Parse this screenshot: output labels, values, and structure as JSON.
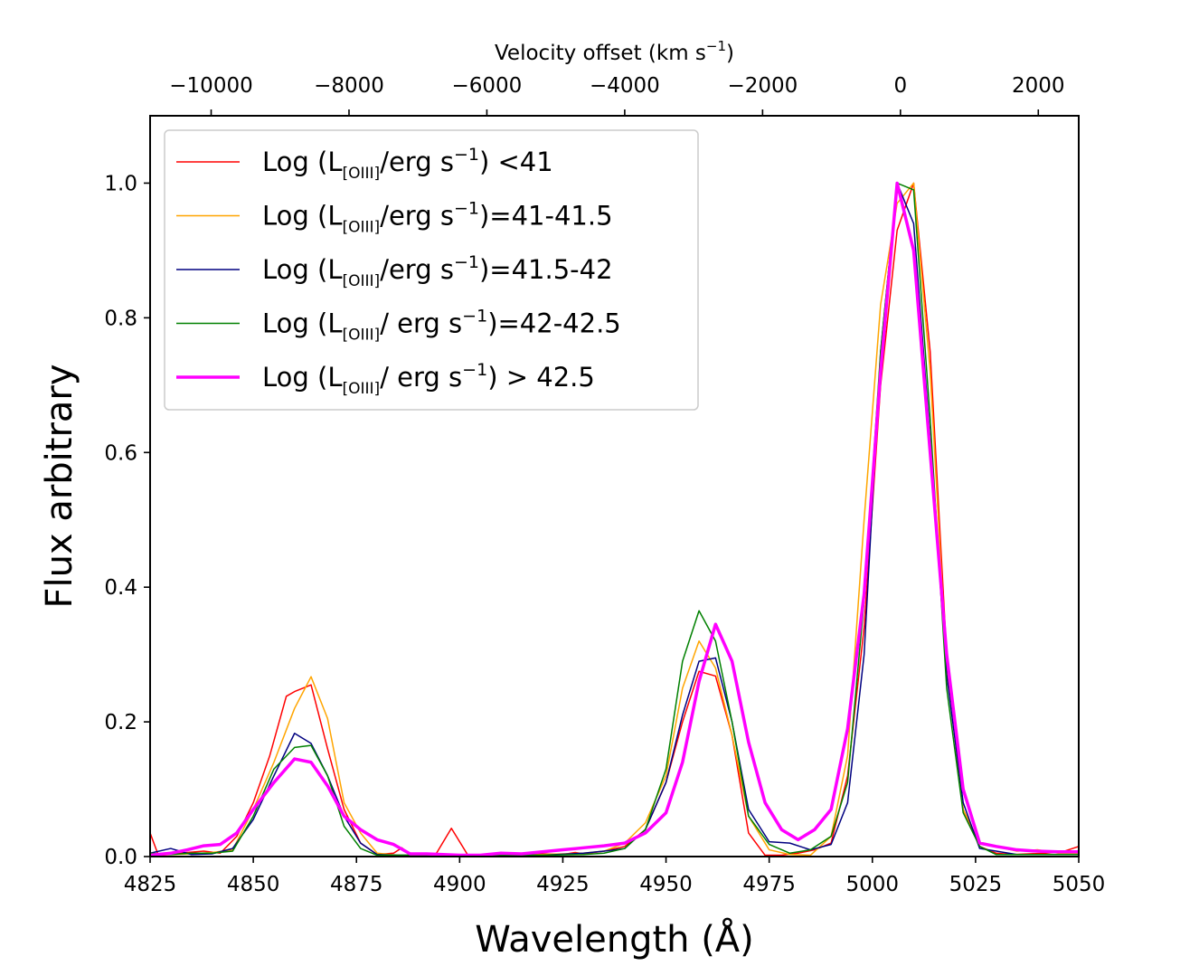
{
  "chart_data": {
    "type": "line",
    "xlabel": "Wavelength (Å)",
    "ylabel": "Flux arbitrary",
    "top_axis_label": "Velocity offset (km s",
    "top_axis_label_sup": "−1",
    "top_axis_label_end": ")",
    "xlim": [
      4825,
      5050
    ],
    "ylim": [
      0,
      1.1
    ],
    "grid": false,
    "legend_position": "upper-left",
    "x_ticks": [
      4825,
      4850,
      4875,
      4900,
      4925,
      4950,
      4975,
      5000,
      5025,
      5050
    ],
    "x_tick_labels": [
      "4825",
      "4850",
      "4875",
      "4900",
      "4925",
      "4950",
      "4975",
      "5000",
      "5025",
      "5050"
    ],
    "y_ticks": [
      0.0,
      0.2,
      0.4,
      0.6,
      0.8,
      1.0
    ],
    "y_tick_labels": [
      "0.0",
      "0.2",
      "0.4",
      "0.6",
      "0.8",
      "1.0"
    ],
    "velocity_ticks": [
      -10000,
      -8000,
      -6000,
      -4000,
      -2000,
      0,
      2000
    ],
    "velocity_tick_labels": [
      "−10000",
      "−8000",
      "−6000",
      "−4000",
      "−2000",
      "0",
      "2000"
    ],
    "velocity_reference_wavelength": 5006.8,
    "series": [
      {
        "name": "Log (L[OIII]/erg s−1) <41",
        "legend_prefix": "Log (L",
        "legend_sub": "[OIII]",
        "legend_mid": "/erg s",
        "legend_sup": "−1",
        "legend_suffix": ") <41",
        "color": "#ff0000",
        "linewidth": 1.5,
        "x": [
          4825,
          4827,
          4830,
          4834,
          4838,
          4842,
          4846,
          4850,
          4854,
          4858,
          4860,
          4864,
          4868,
          4872,
          4876,
          4880,
          4884,
          4886,
          4888,
          4892,
          4894,
          4898,
          4902,
          4906,
          4910,
          4915,
          4920,
          4925,
          4928,
          4930,
          4935,
          4940,
          4945,
          4950,
          4954,
          4958,
          4962,
          4966,
          4970,
          4974,
          4978,
          4982,
          4986,
          4990,
          4994,
          4998,
          5002,
          5006,
          5010,
          5014,
          5018,
          5022,
          5026,
          5030,
          5034,
          5038,
          5042,
          5046,
          5050
        ],
        "y": [
          0.035,
          0.002,
          0.003,
          0.006,
          0.008,
          0.005,
          0.03,
          0.08,
          0.15,
          0.238,
          0.245,
          0.255,
          0.16,
          0.07,
          0.02,
          0.003,
          0.005,
          0.013,
          0.003,
          0.002,
          0.001,
          0.042,
          0.002,
          0.003,
          0.005,
          0.005,
          0.004,
          0.003,
          0.006,
          0.004,
          0.008,
          0.015,
          0.04,
          0.11,
          0.2,
          0.275,
          0.268,
          0.18,
          0.035,
          0.002,
          0.002,
          0.005,
          0.01,
          0.02,
          0.12,
          0.34,
          0.7,
          0.93,
          1.0,
          0.75,
          0.3,
          0.07,
          0.015,
          0.005,
          0.003,
          0.004,
          0.005,
          0.007,
          0.015
        ]
      },
      {
        "name": "Log (L[OIII]/erg s−1)=41-41.5",
        "legend_prefix": "Log (L",
        "legend_sub": "[OIII]",
        "legend_mid": "/erg s",
        "legend_sup": "−1",
        "legend_suffix": ")=41-41.5",
        "color": "#ffa500",
        "linewidth": 1.5,
        "x": [
          4825,
          4830,
          4835,
          4840,
          4845,
          4850,
          4855,
          4860,
          4864,
          4868,
          4872,
          4876,
          4880,
          4885,
          4890,
          4895,
          4900,
          4910,
          4920,
          4930,
          4935,
          4940,
          4945,
          4950,
          4954,
          4958,
          4962,
          4966,
          4970,
          4975,
          4980,
          4985,
          4990,
          4994,
          4998,
          5002,
          5006,
          5010,
          5014,
          5018,
          5022,
          5026,
          5030,
          5035,
          5040,
          5045,
          5050
        ],
        "y": [
          0.003,
          0.003,
          0.004,
          0.006,
          0.01,
          0.07,
          0.14,
          0.22,
          0.267,
          0.205,
          0.08,
          0.035,
          0.005,
          0.002,
          0.002,
          0.002,
          0.002,
          0.002,
          0.003,
          0.005,
          0.008,
          0.02,
          0.05,
          0.12,
          0.25,
          0.32,
          0.28,
          0.18,
          0.06,
          0.01,
          0.003,
          0.002,
          0.03,
          0.15,
          0.5,
          0.82,
          0.97,
          1.0,
          0.72,
          0.28,
          0.07,
          0.02,
          0.015,
          0.008,
          0.01,
          0.005,
          0.005
        ]
      },
      {
        "name": "Log (L[OIII]/erg s−1)=41.5-42",
        "legend_prefix": "Log (L",
        "legend_sub": "[OIII]",
        "legend_mid": "/erg s",
        "legend_sup": "−1",
        "legend_suffix": ")=41.5-42",
        "color": "#000080",
        "linewidth": 1.5,
        "x": [
          4825,
          4830,
          4835,
          4840,
          4845,
          4850,
          4855,
          4860,
          4864,
          4868,
          4872,
          4876,
          4880,
          4885,
          4890,
          4895,
          4900,
          4910,
          4920,
          4930,
          4935,
          4940,
          4945,
          4950,
          4954,
          4958,
          4962,
          4966,
          4970,
          4975,
          4980,
          4985,
          4990,
          4994,
          4998,
          5002,
          5006,
          5010,
          5014,
          5018,
          5022,
          5026,
          5030,
          5035,
          5040,
          5045,
          5050
        ],
        "y": [
          0.005,
          0.012,
          0.003,
          0.004,
          0.012,
          0.055,
          0.12,
          0.183,
          0.168,
          0.12,
          0.06,
          0.02,
          0.003,
          0.002,
          0.002,
          0.002,
          0.002,
          0.002,
          0.002,
          0.005,
          0.008,
          0.012,
          0.04,
          0.11,
          0.21,
          0.29,
          0.295,
          0.2,
          0.07,
          0.022,
          0.02,
          0.01,
          0.018,
          0.08,
          0.3,
          0.75,
          1.0,
          0.94,
          0.62,
          0.27,
          0.08,
          0.012,
          0.008,
          0.003,
          0.003,
          0.003,
          0.003
        ]
      },
      {
        "name": "Log (L[OIII]/ erg s−1)=42-42.5",
        "legend_prefix": "Log (L",
        "legend_sub": "[OIII]",
        "legend_mid": "/ erg s",
        "legend_sup": "−1",
        "legend_suffix": ")=42-42.5",
        "color": "#008000",
        "linewidth": 1.5,
        "x": [
          4825,
          4830,
          4835,
          4840,
          4845,
          4850,
          4855,
          4860,
          4864,
          4868,
          4872,
          4876,
          4880,
          4885,
          4890,
          4895,
          4900,
          4910,
          4920,
          4930,
          4935,
          4940,
          4945,
          4950,
          4954,
          4958,
          4962,
          4966,
          4970,
          4975,
          4980,
          4985,
          4990,
          4994,
          4998,
          5002,
          5006,
          5010,
          5014,
          5018,
          5022,
          5026,
          5030,
          5035,
          5040,
          5045,
          5050
        ],
        "y": [
          0.005,
          0.003,
          0.005,
          0.005,
          0.008,
          0.06,
          0.13,
          0.162,
          0.165,
          0.12,
          0.045,
          0.012,
          0.002,
          0.002,
          0.002,
          0.002,
          0.002,
          0.002,
          0.002,
          0.003,
          0.005,
          0.012,
          0.04,
          0.13,
          0.29,
          0.365,
          0.32,
          0.2,
          0.06,
          0.018,
          0.005,
          0.01,
          0.03,
          0.11,
          0.38,
          0.75,
          1.0,
          0.99,
          0.65,
          0.25,
          0.065,
          0.015,
          0.003,
          0.003,
          0.003,
          0.003,
          0.003
        ]
      },
      {
        "name": "Log (L[OIII]/ erg s−1) > 42.5",
        "legend_prefix": "Log (L",
        "legend_sub": "[OIII]",
        "legend_mid": "/ erg s",
        "legend_sup": "−1",
        "legend_suffix": ") > 42.5",
        "color": "#ff00ff",
        "linewidth": 3.5,
        "x": [
          4825,
          4830,
          4834,
          4838,
          4842,
          4846,
          4850,
          4855,
          4860,
          4864,
          4868,
          4872,
          4876,
          4880,
          4884,
          4888,
          4892,
          4896,
          4900,
          4905,
          4910,
          4915,
          4920,
          4925,
          4930,
          4935,
          4940,
          4945,
          4950,
          4954,
          4958,
          4962,
          4966,
          4970,
          4974,
          4978,
          4982,
          4986,
          4990,
          4994,
          4998,
          5002,
          5006,
          5010,
          5014,
          5018,
          5022,
          5026,
          5030,
          5035,
          5040,
          5045,
          5050
        ],
        "y": [
          0.002,
          0.005,
          0.01,
          0.016,
          0.018,
          0.035,
          0.07,
          0.11,
          0.145,
          0.14,
          0.105,
          0.06,
          0.04,
          0.025,
          0.018,
          0.004,
          0.004,
          0.003,
          0.002,
          0.002,
          0.005,
          0.004,
          0.007,
          0.01,
          0.013,
          0.016,
          0.02,
          0.035,
          0.065,
          0.14,
          0.26,
          0.345,
          0.29,
          0.17,
          0.08,
          0.04,
          0.025,
          0.04,
          0.07,
          0.19,
          0.39,
          0.72,
          1.0,
          0.9,
          0.6,
          0.3,
          0.1,
          0.02,
          0.015,
          0.01,
          0.008,
          0.007,
          0.007
        ]
      }
    ]
  }
}
